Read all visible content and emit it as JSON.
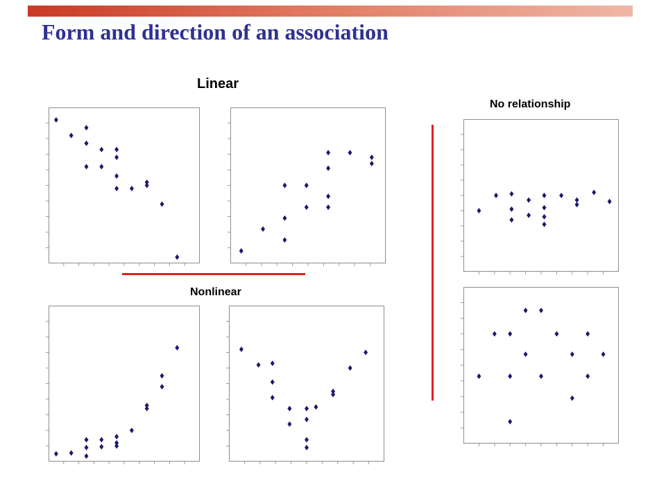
{
  "slide": {
    "title": "Form and direction of an association",
    "labels": {
      "linear": "Linear",
      "nonlinear": "Nonlinear",
      "no_relationship": "No relationship"
    },
    "colors": {
      "title": "#2e3192",
      "marker": "#1a1a6e",
      "separator": "#e01e1e"
    }
  },
  "chart_data": [
    {
      "type": "scatter",
      "group": "Linear",
      "panel": "negative",
      "xlim": [
        0,
        10
      ],
      "ylim": [
        0,
        10
      ],
      "points": [
        [
          0.5,
          9.2
        ],
        [
          1.5,
          8.2
        ],
        [
          2.5,
          8.7
        ],
        [
          2.5,
          7.7
        ],
        [
          2.5,
          6.2
        ],
        [
          3.5,
          7.3
        ],
        [
          3.5,
          6.2
        ],
        [
          4.5,
          7.3
        ],
        [
          4.5,
          6.8
        ],
        [
          4.5,
          5.6
        ],
        [
          4.5,
          4.8
        ],
        [
          5.5,
          4.8
        ],
        [
          6.5,
          5.2
        ],
        [
          6.5,
          5.0
        ],
        [
          7.5,
          3.8
        ],
        [
          8.5,
          0.4
        ]
      ]
    },
    {
      "type": "scatter",
      "group": "Linear",
      "panel": "positive",
      "xlim": [
        0,
        10
      ],
      "ylim": [
        0,
        10
      ],
      "points": [
        [
          0.7,
          0.8
        ],
        [
          2.1,
          2.2
        ],
        [
          3.5,
          5.0
        ],
        [
          3.5,
          2.9
        ],
        [
          3.5,
          1.5
        ],
        [
          4.9,
          5.0
        ],
        [
          4.9,
          3.6
        ],
        [
          6.3,
          7.1
        ],
        [
          6.3,
          6.1
        ],
        [
          6.3,
          4.3
        ],
        [
          6.3,
          3.6
        ],
        [
          7.7,
          7.1
        ],
        [
          9.1,
          6.8
        ],
        [
          9.1,
          6.4
        ]
      ]
    },
    {
      "type": "scatter",
      "group": "Nonlinear",
      "panel": "exponential",
      "xlim": [
        0,
        10
      ],
      "ylim": [
        0,
        10
      ],
      "points": [
        [
          0.5,
          0.5
        ],
        [
          1.5,
          0.55
        ],
        [
          2.5,
          1.4
        ],
        [
          2.5,
          0.9
        ],
        [
          2.5,
          0.35
        ],
        [
          3.5,
          1.4
        ],
        [
          3.5,
          0.95
        ],
        [
          4.5,
          1.6
        ],
        [
          4.5,
          1.2
        ],
        [
          4.5,
          1.0
        ],
        [
          5.5,
          2.0
        ],
        [
          6.5,
          3.6
        ],
        [
          6.5,
          3.4
        ],
        [
          7.5,
          5.5
        ],
        [
          7.5,
          4.8
        ],
        [
          8.5,
          7.3
        ]
      ]
    },
    {
      "type": "scatter",
      "group": "Nonlinear",
      "panel": "u-shaped",
      "xlim": [
        0,
        10
      ],
      "ylim": [
        0,
        10
      ],
      "points": [
        [
          0.8,
          7.2
        ],
        [
          1.9,
          6.2
        ],
        [
          2.8,
          6.3
        ],
        [
          2.8,
          5.1
        ],
        [
          2.8,
          4.1
        ],
        [
          3.9,
          3.4
        ],
        [
          3.9,
          2.4
        ],
        [
          5.0,
          3.4
        ],
        [
          5.0,
          2.7
        ],
        [
          5.0,
          1.4
        ],
        [
          5.0,
          0.9
        ],
        [
          5.6,
          3.5
        ],
        [
          6.7,
          4.5
        ],
        [
          6.7,
          4.3
        ],
        [
          7.8,
          6.0
        ],
        [
          8.8,
          7.0
        ]
      ]
    },
    {
      "type": "scatter",
      "group": "No relationship",
      "panel": "flat",
      "xlim": [
        0,
        10
      ],
      "ylim": [
        0,
        10
      ],
      "points": [
        [
          1.0,
          4.0
        ],
        [
          2.1,
          5.0
        ],
        [
          3.1,
          5.1
        ],
        [
          3.1,
          4.1
        ],
        [
          3.1,
          3.4
        ],
        [
          4.2,
          4.7
        ],
        [
          4.2,
          3.7
        ],
        [
          5.2,
          5.0
        ],
        [
          5.2,
          4.2
        ],
        [
          5.2,
          3.6
        ],
        [
          5.2,
          3.1
        ],
        [
          6.3,
          5.0
        ],
        [
          7.3,
          4.7
        ],
        [
          7.3,
          4.4
        ],
        [
          8.4,
          5.2
        ],
        [
          9.4,
          4.6
        ]
      ]
    },
    {
      "type": "scatter",
      "group": "No relationship",
      "panel": "random",
      "xlim": [
        0,
        10
      ],
      "ylim": [
        0,
        10
      ],
      "points": [
        [
          1.0,
          4.3
        ],
        [
          2.0,
          7.0
        ],
        [
          3.0,
          7.0
        ],
        [
          3.0,
          4.3
        ],
        [
          3.0,
          1.4
        ],
        [
          4.0,
          8.5
        ],
        [
          4.0,
          5.7
        ],
        [
          5.0,
          8.5
        ],
        [
          5.0,
          4.3
        ],
        [
          6.0,
          7.0
        ],
        [
          7.0,
          5.7
        ],
        [
          7.0,
          2.9
        ],
        [
          8.0,
          7.0
        ],
        [
          8.0,
          4.3
        ],
        [
          9.0,
          5.7
        ]
      ]
    }
  ]
}
